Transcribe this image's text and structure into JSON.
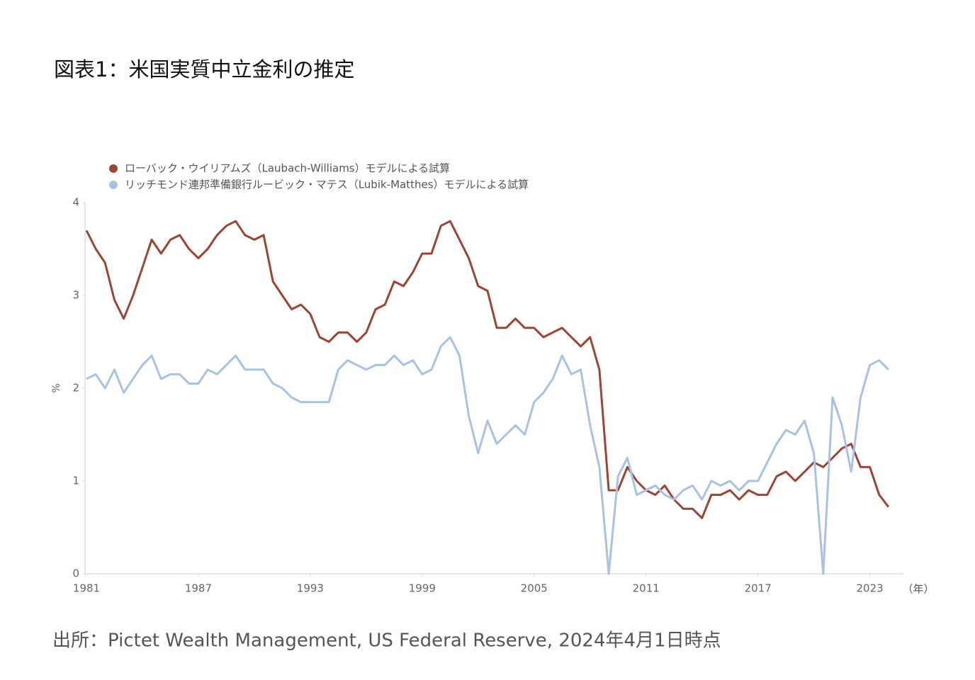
{
  "title": "図表1：米国実質中立金利の推定",
  "source": "出所：Pictet Wealth Management, US Federal Reserve, 2024年4月1日時点",
  "chart_data": {
    "type": "line",
    "x_label": "（年）",
    "y_label": "%",
    "legend": "top-left",
    "xlim": [
      1981,
      2024.8
    ],
    "ylim": [
      0,
      4
    ],
    "xticks": [
      1981,
      1987,
      1993,
      1999,
      2005,
      2011,
      2017,
      2023
    ],
    "yticks": [
      0,
      1,
      2,
      3,
      4
    ],
    "x": [
      1981,
      1981.5,
      1982,
      1982.5,
      1983,
      1983.5,
      1984,
      1984.5,
      1985,
      1985.5,
      1986,
      1986.5,
      1987,
      1987.5,
      1988,
      1988.5,
      1989,
      1989.5,
      1990,
      1990.5,
      1991,
      1991.5,
      1992,
      1992.5,
      1993,
      1993.5,
      1994,
      1994.5,
      1995,
      1995.5,
      1996,
      1996.5,
      1997,
      1997.5,
      1998,
      1998.5,
      1999,
      1999.5,
      2000,
      2000.5,
      2001,
      2001.5,
      2002,
      2002.5,
      2003,
      2003.5,
      2004,
      2004.5,
      2005,
      2005.5,
      2006,
      2006.5,
      2007,
      2007.5,
      2008,
      2008.5,
      2009,
      2009.5,
      2010,
      2010.5,
      2011,
      2011.5,
      2012,
      2012.5,
      2013,
      2013.5,
      2014,
      2014.5,
      2015,
      2015.5,
      2016,
      2016.5,
      2017,
      2017.5,
      2018,
      2018.5,
      2019,
      2019.5,
      2020,
      2020.5,
      2021,
      2021.5,
      2022,
      2022.5,
      2023,
      2023.5,
      2024
    ],
    "series": [
      {
        "name": "ローバック・ウイリアムズ（Laubach-Williams）モデルによる試算",
        "color": "#9a4535",
        "values": [
          3.7,
          3.5,
          3.35,
          2.95,
          2.75,
          3.0,
          3.3,
          3.6,
          3.45,
          3.6,
          3.65,
          3.5,
          3.4,
          3.5,
          3.65,
          3.75,
          3.8,
          3.65,
          3.6,
          3.65,
          3.15,
          3.0,
          2.85,
          2.9,
          2.8,
          2.55,
          2.5,
          2.6,
          2.6,
          2.5,
          2.6,
          2.85,
          2.9,
          3.15,
          3.1,
          3.25,
          3.45,
          3.45,
          3.75,
          3.8,
          3.6,
          3.4,
          3.1,
          3.05,
          2.65,
          2.65,
          2.75,
          2.65,
          2.65,
          2.55,
          2.6,
          2.65,
          2.55,
          2.45,
          2.55,
          2.2,
          0.9,
          0.9,
          1.15,
          1.0,
          0.9,
          0.85,
          0.95,
          0.8,
          0.7,
          0.7,
          0.6,
          0.85,
          0.85,
          0.9,
          0.8,
          0.9,
          0.85,
          0.85,
          1.05,
          1.1,
          1.0,
          1.1,
          1.2,
          1.15,
          1.25,
          1.35,
          1.4,
          1.15,
          1.15,
          0.85,
          0.72
        ]
      },
      {
        "name": "リッチモンド連邦準備銀行ルービック・マテス（Lubik-Matthes）モデルによる試算",
        "color": "#a9c2e2",
        "values": [
          2.1,
          2.15,
          2.0,
          2.2,
          1.95,
          2.1,
          2.25,
          2.35,
          2.1,
          2.15,
          2.15,
          2.05,
          2.05,
          2.2,
          2.15,
          2.25,
          2.35,
          2.2,
          2.2,
          2.2,
          2.05,
          2.0,
          1.9,
          1.85,
          1.85,
          1.85,
          1.85,
          2.2,
          2.3,
          2.25,
          2.2,
          2.25,
          2.25,
          2.35,
          2.25,
          2.3,
          2.15,
          2.2,
          2.45,
          2.55,
          2.35,
          1.7,
          1.3,
          1.65,
          1.4,
          1.5,
          1.6,
          1.5,
          1.85,
          1.95,
          2.1,
          2.35,
          2.15,
          2.2,
          1.6,
          1.15,
          0,
          1.05,
          1.25,
          0.85,
          0.9,
          0.95,
          0.85,
          0.8,
          0.9,
          0.95,
          0.8,
          1.0,
          0.95,
          1.0,
          0.9,
          1.0,
          1.0,
          1.2,
          1.4,
          1.55,
          1.5,
          1.65,
          1.3,
          0,
          1.9,
          1.6,
          1.1,
          1.9,
          2.25,
          2.3,
          2.2
        ]
      }
    ]
  }
}
